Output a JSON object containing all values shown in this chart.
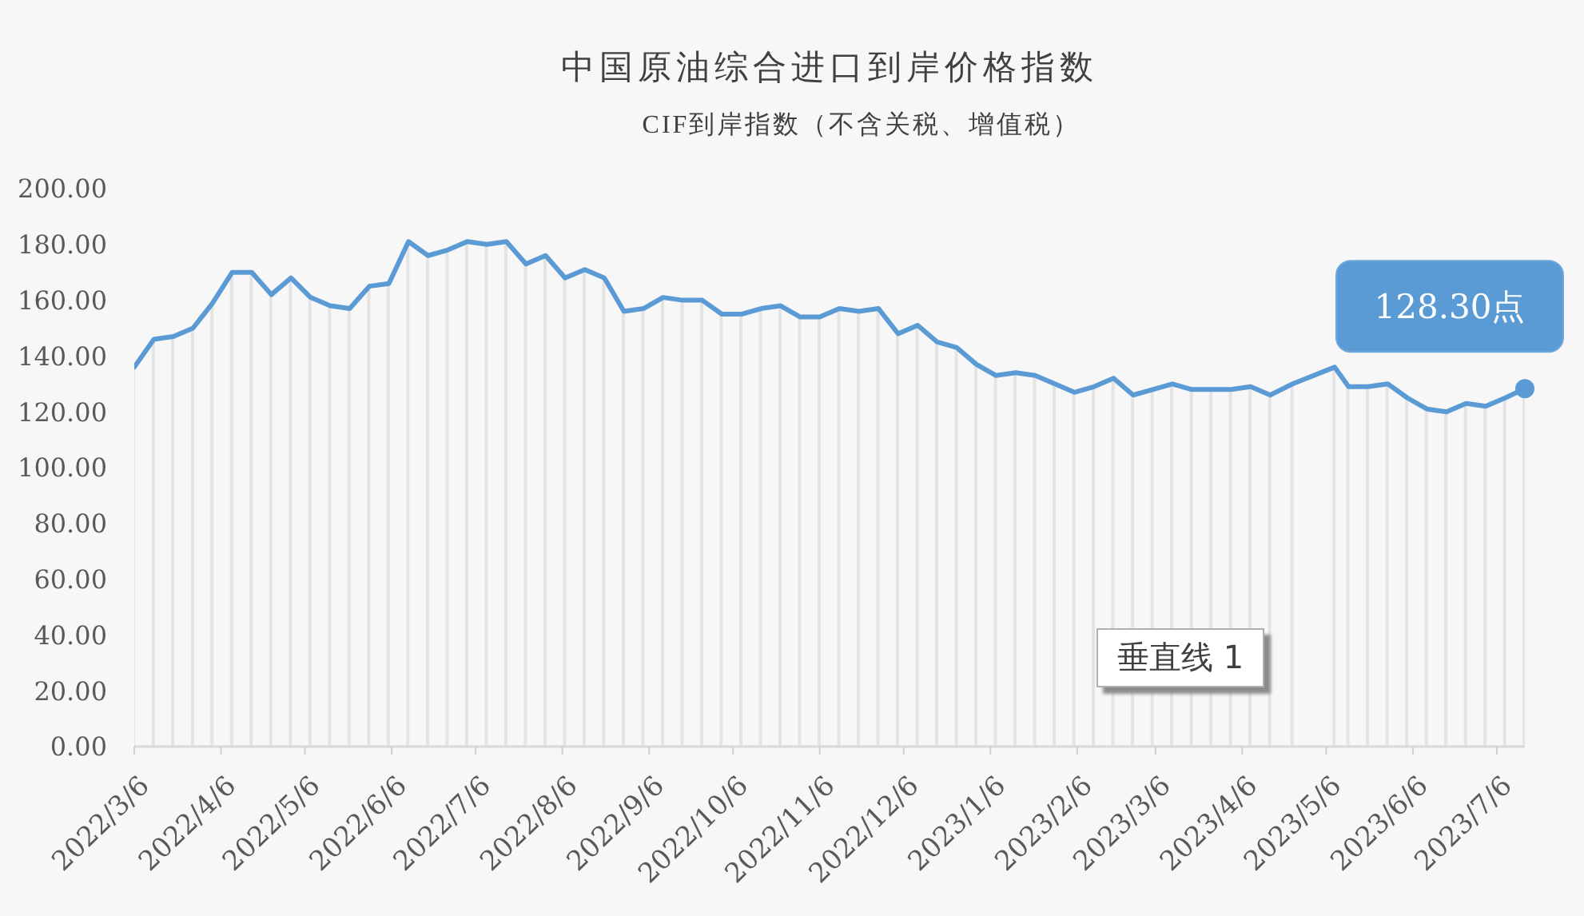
{
  "chart_data": {
    "type": "line",
    "title": "中国原油综合进口到岸价格指数",
    "subtitle": "CIF到岸指数（不含关税、增值税）",
    "x": [
      "2022-03-06",
      "2022-03-13",
      "2022-03-20",
      "2022-03-27",
      "2022-04-03",
      "2022-04-10",
      "2022-04-17",
      "2022-04-24",
      "2022-05-01",
      "2022-05-08",
      "2022-05-15",
      "2022-05-22",
      "2022-05-29",
      "2022-06-05",
      "2022-06-12",
      "2022-06-19",
      "2022-06-26",
      "2022-07-03",
      "2022-07-10",
      "2022-07-17",
      "2022-07-24",
      "2022-07-31",
      "2022-08-07",
      "2022-08-14",
      "2022-08-21",
      "2022-08-28",
      "2022-09-04",
      "2022-09-11",
      "2022-09-18",
      "2022-09-25",
      "2022-10-02",
      "2022-10-09",
      "2022-10-16",
      "2022-10-23",
      "2022-10-30",
      "2022-11-06",
      "2022-11-13",
      "2022-11-20",
      "2022-11-27",
      "2022-12-04",
      "2022-12-11",
      "2022-12-18",
      "2022-12-25",
      "2023-01-01",
      "2023-01-08",
      "2023-01-15",
      "2023-01-22",
      "2023-01-29",
      "2023-02-05",
      "2023-02-12",
      "2023-02-19",
      "2023-02-26",
      "2023-03-05",
      "2023-03-12",
      "2023-03-19",
      "2023-03-26",
      "2023-04-02",
      "2023-04-09",
      "2023-04-16",
      "2023-04-24",
      "2023-05-09",
      "2023-05-14",
      "2023-05-21",
      "2023-05-28",
      "2023-06-04",
      "2023-06-11",
      "2023-06-18",
      "2023-06-25",
      "2023-07-02",
      "2023-07-09",
      "2023-07-16"
    ],
    "series": [
      {
        "type": "bar",
        "color": "#e4e4e4",
        "values": [
          136,
          146,
          147,
          150,
          159,
          170,
          170,
          162,
          168,
          161,
          158,
          157,
          165,
          166,
          181,
          176,
          178,
          181,
          180,
          181,
          173,
          176,
          168,
          171,
          168,
          156,
          157,
          161,
          160,
          160,
          155,
          155,
          157,
          158,
          154,
          154,
          157,
          156,
          157,
          148,
          151,
          145,
          143,
          137,
          133,
          134,
          133,
          130,
          127,
          129,
          132,
          126,
          128,
          130,
          128,
          128,
          128,
          129,
          126,
          130,
          136,
          129,
          129,
          130,
          125,
          121,
          120,
          123,
          122,
          125,
          128.3
        ]
      },
      {
        "color": "#5b9bd5",
        "values": [
          136,
          146,
          147,
          150,
          159,
          170,
          170,
          162,
          168,
          161,
          158,
          157,
          165,
          166,
          181,
          176,
          178,
          181,
          180,
          181,
          173,
          176,
          168,
          171,
          168,
          156,
          157,
          161,
          160,
          160,
          155,
          155,
          157,
          158,
          154,
          154,
          157,
          156,
          157,
          148,
          151,
          145,
          143,
          137,
          133,
          134,
          133,
          130,
          127,
          129,
          132,
          126,
          128,
          130,
          128,
          128,
          128,
          129,
          126,
          130,
          136,
          129,
          129,
          130,
          125,
          121,
          120,
          123,
          122,
          125,
          128.3
        ]
      }
    ],
    "xlim": [
      "2022-03-06",
      "2023-07-16"
    ],
    "xticks": [
      {
        "value": "2022-03-06",
        "label": "2022/3/6"
      },
      {
        "value": "2022-04-06",
        "label": "2022/4/6"
      },
      {
        "value": "2022-05-06",
        "label": "2022/5/6"
      },
      {
        "value": "2022-06-06",
        "label": "2022/6/6"
      },
      {
        "value": "2022-07-06",
        "label": "2022/7/6"
      },
      {
        "value": "2022-08-06",
        "label": "2022/8/6"
      },
      {
        "value": "2022-09-06",
        "label": "2022/9/6"
      },
      {
        "value": "2022-10-06",
        "label": "2022/10/6"
      },
      {
        "value": "2022-11-06",
        "label": "2022/11/6"
      },
      {
        "value": "2022-12-06",
        "label": "2022/12/6"
      },
      {
        "value": "2023-01-06",
        "label": "2023/1/6"
      },
      {
        "value": "2023-02-06",
        "label": "2023/2/6"
      },
      {
        "value": "2023-03-06",
        "label": "2023/3/6"
      },
      {
        "value": "2023-04-06",
        "label": "2023/4/6"
      },
      {
        "value": "2023-05-06",
        "label": "2023/5/6"
      },
      {
        "value": "2023-06-06",
        "label": "2023/6/6"
      },
      {
        "value": "2023-07-06",
        "label": "2023/7/6"
      }
    ],
    "ylim": [
      0,
      200
    ],
    "yticks": [
      {
        "value": 0,
        "label": "0.00"
      },
      {
        "value": 20,
        "label": "20.00"
      },
      {
        "value": 40,
        "label": "40.00"
      },
      {
        "value": 60,
        "label": "60.00"
      },
      {
        "value": 80,
        "label": "80.00"
      },
      {
        "value": 100,
        "label": "100.00"
      },
      {
        "value": 120,
        "label": "120.00"
      },
      {
        "value": 140,
        "label": "140.00"
      },
      {
        "value": 160,
        "label": "160.00"
      },
      {
        "value": 180,
        "label": "180.00"
      },
      {
        "value": 200,
        "label": "200.00"
      }
    ],
    "line_style": "solid",
    "annotations": [
      {
        "text": "128.30点",
        "x": "2023-07-16",
        "y": 128.3
      },
      "垂直线 1"
    ]
  }
}
